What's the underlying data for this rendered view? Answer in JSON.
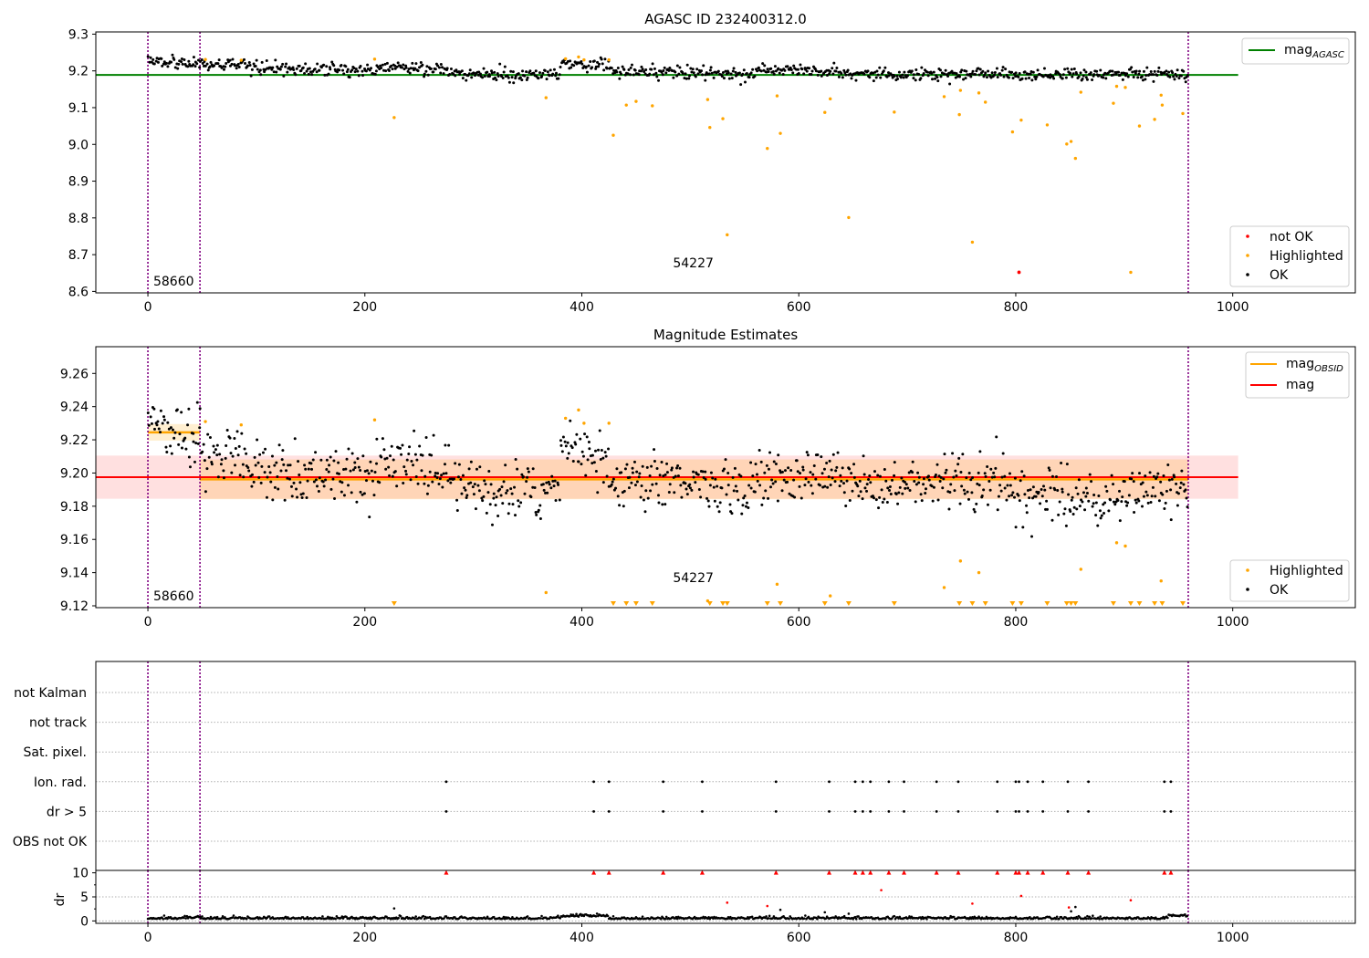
{
  "chart_data": [
    {
      "type": "scatter",
      "title": "AGASC ID 232400312.0",
      "xlim": [
        -48,
        1113
      ],
      "ylim": [
        8.596,
        9.306
      ],
      "xticks": [
        0,
        200,
        400,
        600,
        800,
        1000
      ],
      "yticks": [
        8.6,
        8.7,
        8.8,
        8.9,
        9.0,
        9.1,
        9.2,
        9.3
      ],
      "ytick_labels": [
        "8.6",
        "8.7",
        "8.8",
        "8.9",
        "9.0",
        "9.1",
        "9.2",
        "9.3"
      ],
      "obs_boundaries": [
        0,
        48,
        959
      ],
      "obsids": [
        {
          "x": 5,
          "label": "58660"
        },
        {
          "x": 484,
          "label": "54227"
        }
      ],
      "mag_agasc": 9.189,
      "mag_agasc_xrange": [
        -48,
        1005
      ],
      "legend_lines": [
        {
          "label": "mag",
          "sub": "AGASC",
          "color": "#008000"
        }
      ],
      "legend_points": [
        {
          "label": "not OK",
          "color": "#ff0000"
        },
        {
          "label": "Highlighted",
          "color": "#ffa500"
        },
        {
          "label": "OK",
          "color": "#000000"
        }
      ],
      "ok_segments": [
        {
          "x0": 0,
          "x1": 48,
          "ya": 9.231,
          "yb": 9.219
        },
        {
          "x0": 48,
          "x1": 100,
          "ya": 9.219,
          "yb": 9.211
        },
        {
          "x0": 100,
          "x1": 210,
          "ya": 9.205,
          "yb": 9.203
        },
        {
          "x0": 210,
          "x1": 280,
          "ya": 9.21,
          "yb": 9.201
        },
        {
          "x0": 280,
          "x1": 380,
          "ya": 9.191,
          "yb": 9.19
        },
        {
          "x0": 380,
          "x1": 425,
          "ya": 9.222,
          "yb": 9.215
        },
        {
          "x0": 425,
          "x1": 560,
          "ya": 9.2,
          "yb": 9.19
        },
        {
          "x0": 560,
          "x1": 640,
          "ya": 9.205,
          "yb": 9.198
        },
        {
          "x0": 640,
          "x1": 800,
          "ya": 9.192,
          "yb": 9.192
        },
        {
          "x0": 800,
          "x1": 900,
          "ya": 9.188,
          "yb": 9.19
        },
        {
          "x0": 900,
          "x1": 959,
          "ya": 9.196,
          "yb": 9.192
        }
      ],
      "highlighted": [
        [
          53,
          9.231
        ],
        [
          86,
          9.229
        ],
        [
          209,
          9.232
        ],
        [
          227,
          9.073
        ],
        [
          367,
          9.127
        ],
        [
          385,
          9.233
        ],
        [
          397,
          9.238
        ],
        [
          402,
          9.23
        ],
        [
          425,
          9.23
        ],
        [
          429,
          9.025
        ],
        [
          441,
          9.107
        ],
        [
          450,
          9.117
        ],
        [
          465,
          9.105
        ],
        [
          516,
          9.122
        ],
        [
          518,
          9.046
        ],
        [
          530,
          9.07
        ],
        [
          534,
          8.754
        ],
        [
          571,
          8.989
        ],
        [
          580,
          9.132
        ],
        [
          583,
          9.03
        ],
        [
          624,
          9.087
        ],
        [
          629,
          9.124
        ],
        [
          646,
          8.801
        ],
        [
          688,
          9.088
        ],
        [
          734,
          9.13
        ],
        [
          748,
          9.081
        ],
        [
          749,
          9.147
        ],
        [
          760,
          8.734
        ],
        [
          766,
          9.14
        ],
        [
          772,
          9.115
        ],
        [
          797,
          9.034
        ],
        [
          805,
          9.066
        ],
        [
          829,
          9.053
        ],
        [
          847,
          9.001
        ],
        [
          851,
          9.008
        ],
        [
          855,
          8.962
        ],
        [
          860,
          9.142
        ],
        [
          890,
          9.112
        ],
        [
          893,
          9.158
        ],
        [
          901,
          9.155
        ],
        [
          906,
          8.652
        ],
        [
          914,
          9.05
        ],
        [
          928,
          9.068
        ],
        [
          934,
          9.134
        ],
        [
          935,
          9.107
        ],
        [
          954,
          9.084
        ]
      ],
      "not_ok": [
        [
          803,
          8.652
        ]
      ]
    },
    {
      "type": "scatter",
      "title": "Magnitude Estimates",
      "xlim": [
        -48,
        1113
      ],
      "ylim": [
        9.1189,
        9.2761
      ],
      "xticks": [
        0,
        200,
        400,
        600,
        800,
        1000
      ],
      "yticks": [
        9.12,
        9.14,
        9.16,
        9.18,
        9.2,
        9.22,
        9.24,
        9.26
      ],
      "ytick_labels": [
        "9.12",
        "9.14",
        "9.16",
        "9.18",
        "9.20",
        "9.22",
        "9.24",
        "9.26"
      ],
      "obs_boundaries": [
        0,
        48,
        959
      ],
      "obsids": [
        {
          "x": 5,
          "label": "58660"
        },
        {
          "x": 484,
          "label": "54227"
        }
      ],
      "mag": 9.1975,
      "mag_band": [
        9.1845,
        9.2105
      ],
      "mag_xrange": [
        -48,
        1005
      ],
      "mag_obsid": [
        {
          "x0": 0,
          "x1": 48,
          "y": 9.2245,
          "band": [
            9.2195,
            9.2295
          ]
        },
        {
          "x0": 48,
          "x1": 959,
          "y": 9.1962,
          "band": [
            9.1842,
            9.2082
          ]
        }
      ],
      "legend_lines": [
        {
          "label": "mag",
          "sub": "OBSID",
          "color": "#ffa500"
        },
        {
          "label": "mag",
          "sub": "",
          "color": "#ff0000"
        }
      ],
      "legend_points": [
        {
          "label": "Highlighted",
          "color": "#ffa500"
        },
        {
          "label": "OK",
          "color": "#000000"
        }
      ],
      "ok_segments": [
        {
          "x0": 0,
          "x1": 48,
          "ya": 9.231,
          "yb": 9.219
        },
        {
          "x0": 48,
          "x1": 100,
          "ya": 9.213,
          "yb": 9.205
        },
        {
          "x0": 100,
          "x1": 210,
          "ya": 9.201,
          "yb": 9.198
        },
        {
          "x0": 210,
          "x1": 280,
          "ya": 9.206,
          "yb": 9.201
        },
        {
          "x0": 280,
          "x1": 380,
          "ya": 9.191,
          "yb": 9.188
        },
        {
          "x0": 380,
          "x1": 425,
          "ya": 9.218,
          "yb": 9.205
        },
        {
          "x0": 425,
          "x1": 560,
          "ya": 9.198,
          "yb": 9.19
        },
        {
          "x0": 560,
          "x1": 640,
          "ya": 9.2,
          "yb": 9.196
        },
        {
          "x0": 640,
          "x1": 800,
          "ya": 9.191,
          "yb": 9.193
        },
        {
          "x0": 800,
          "x1": 900,
          "ya": 9.189,
          "yb": 9.18
        },
        {
          "x0": 900,
          "x1": 959,
          "ya": 9.19,
          "yb": 9.192
        }
      ],
      "highlighted": [
        [
          53,
          9.231
        ],
        [
          86,
          9.229
        ],
        [
          209,
          9.232
        ],
        [
          367,
          9.128
        ],
        [
          385,
          9.233
        ],
        [
          397,
          9.238
        ],
        [
          402,
          9.23
        ],
        [
          425,
          9.23
        ],
        [
          516,
          9.123
        ],
        [
          580,
          9.133
        ],
        [
          629,
          9.126
        ],
        [
          734,
          9.131
        ],
        [
          749,
          9.147
        ],
        [
          766,
          9.14
        ],
        [
          860,
          9.142
        ],
        [
          893,
          9.158
        ],
        [
          901,
          9.156
        ],
        [
          934,
          9.135
        ]
      ],
      "offscale_low": [
        227,
        429,
        441,
        450,
        465,
        518,
        530,
        534,
        571,
        583,
        624,
        646,
        688,
        748,
        760,
        772,
        797,
        805,
        829,
        847,
        851,
        855,
        890,
        906,
        914,
        928,
        935,
        954
      ]
    },
    {
      "type": "scatter",
      "title": "",
      "xlim": [
        -48,
        1113
      ],
      "flag_rows": [
        "not Kalman",
        "not track",
        "Sat. pixel.",
        "Ion. rad.",
        "dr > 5",
        "OBS not OK"
      ],
      "flags": {
        "Ion. rad.": [
          275,
          411,
          425,
          475,
          511,
          579,
          628,
          652,
          659,
          666,
          683,
          697,
          727,
          747,
          783,
          800,
          803,
          811,
          825,
          848,
          867,
          937,
          943
        ],
        "dr > 5": [
          275,
          411,
          425,
          475,
          511,
          579,
          628,
          652,
          659,
          666,
          683,
          697,
          727,
          747,
          783,
          800,
          803,
          811,
          825,
          848,
          867,
          937,
          943
        ]
      },
      "obs_boundaries": [
        0,
        48,
        959
      ]
    },
    {
      "type": "scatter",
      "title": "",
      "xlim": [
        -48,
        1113
      ],
      "ylim": [
        -0.5,
        10.5
      ],
      "yticks": [
        0,
        5,
        10
      ],
      "ytick_labels": [
        "0",
        "5",
        "10"
      ],
      "xticks": [
        0,
        200,
        400,
        600,
        800,
        1000
      ],
      "ylabel": "dr",
      "obs_boundaries": [
        0,
        48,
        959
      ],
      "capped_at_10": [
        275,
        411,
        425,
        475,
        511,
        579,
        628,
        652,
        659,
        666,
        683,
        697,
        727,
        747,
        783,
        800,
        803,
        811,
        825,
        848,
        867,
        937,
        943
      ],
      "red_points": [
        [
          534,
          3.8
        ],
        [
          571,
          3.1
        ],
        [
          676,
          6.4
        ],
        [
          760,
          3.6
        ],
        [
          805,
          5.2
        ],
        [
          849,
          2.8
        ],
        [
          906,
          4.3
        ]
      ],
      "black_outliers": [
        [
          227,
          2.6
        ],
        [
          583,
          2.3
        ],
        [
          624,
          1.8
        ],
        [
          646,
          1.5
        ],
        [
          851,
          2.0
        ],
        [
          855,
          2.9
        ]
      ],
      "baseline_level": 0.4
    }
  ]
}
